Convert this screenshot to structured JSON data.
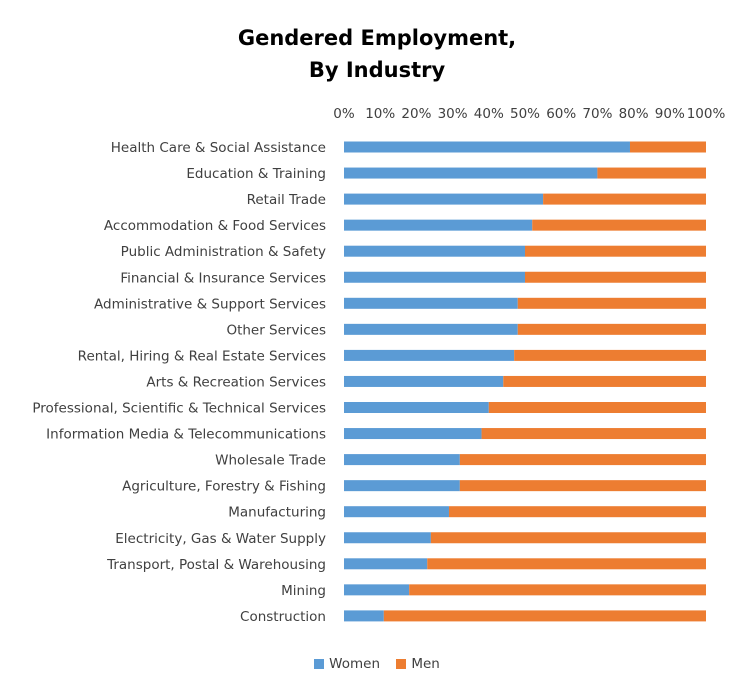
{
  "chart_data": {
    "type": "bar",
    "orientation": "horizontal",
    "stacked": "percent",
    "title_lines": [
      "Gendered Employment,",
      "By Industry"
    ],
    "xlim": [
      0,
      100
    ],
    "x_ticks": [
      "0%",
      "10%",
      "20%",
      "30%",
      "40%",
      "50%",
      "60%",
      "70%",
      "80%",
      "90%",
      "100%"
    ],
    "categories": [
      "Health Care & Social Assistance",
      "Education & Training",
      "Retail Trade",
      "Accommodation & Food Services",
      "Public Administration & Safety",
      "Financial & Insurance Services",
      "Administrative & Support Services",
      "Other Services",
      "Rental, Hiring & Real Estate Services",
      "Arts & Recreation Services",
      "Professional, Scientific & Technical Services",
      "Information Media & Telecommunications",
      "Wholesale Trade",
      "Agriculture, Forestry & Fishing",
      "Manufacturing",
      "Electricity, Gas & Water Supply",
      "Transport, Postal & Warehousing",
      "Mining",
      "Construction"
    ],
    "series": [
      {
        "name": "Women",
        "color": "#5B9BD5",
        "values": [
          79,
          70,
          55,
          52,
          50,
          50,
          48,
          48,
          47,
          44,
          40,
          38,
          32,
          32,
          29,
          24,
          23,
          18,
          11
        ]
      },
      {
        "name": "Men",
        "color": "#ED7D31",
        "values": [
          21,
          30,
          45,
          48,
          50,
          50,
          52,
          52,
          53,
          56,
          60,
          62,
          68,
          68,
          71,
          76,
          77,
          82,
          89
        ]
      }
    ],
    "legend": "bottom"
  }
}
